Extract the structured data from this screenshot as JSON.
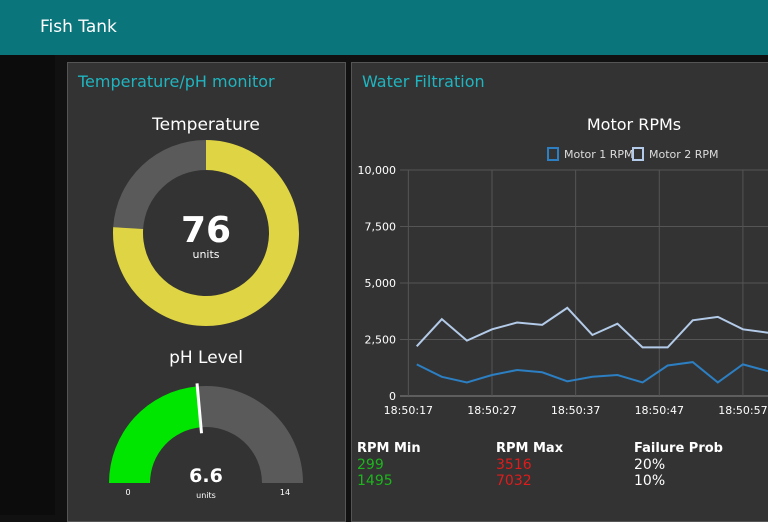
{
  "header": {
    "title": "Fish Tank"
  },
  "groups": [
    {
      "title": "Temperature/pH monitor"
    },
    {
      "title": "Water Filtration"
    }
  ],
  "temperature_gauge": {
    "type": "donut",
    "title": "Temperature",
    "value": 76,
    "units": "units",
    "range": [
      0,
      100
    ],
    "color": "#dfd444",
    "track_color": "#5a5a5a"
  },
  "ph_gauge": {
    "type": "gauge",
    "title": "pH Level",
    "value": 6.6,
    "units": "units",
    "min": 0,
    "max": 14,
    "color": "#00e600",
    "track_color": "#5a5a5a"
  },
  "chart_data": {
    "type": "line",
    "title": "Motor RPMs",
    "x": [
      "18:50:18",
      "18:50:21",
      "18:50:24",
      "18:50:27",
      "18:50:30",
      "18:50:33",
      "18:50:36",
      "18:50:39",
      "18:50:42",
      "18:50:45",
      "18:50:48",
      "18:50:51",
      "18:50:54",
      "18:50:57",
      "18:51:00"
    ],
    "series": [
      {
        "name": "Motor 1 RPM",
        "color": "#2c7fc2",
        "values": [
          1400,
          850,
          600,
          930,
          1150,
          1050,
          650,
          850,
          930,
          600,
          1350,
          1500,
          600,
          1400,
          1100
        ]
      },
      {
        "name": "Motor 2 RPM",
        "color": "#b3cbe8",
        "values": [
          2200,
          3400,
          2450,
          2950,
          3250,
          3150,
          3900,
          2700,
          3200,
          2150,
          2150,
          3350,
          3500,
          2950,
          2800
        ]
      }
    ],
    "xlim": [
      "18:50:16",
      "18:51:00"
    ],
    "xticks": [
      "18:50:17",
      "18:50:27",
      "18:50:37",
      "18:50:47",
      "18:50:57"
    ],
    "ylim": [
      0,
      10000
    ],
    "yticks": [
      0,
      {
        "value": 2500,
        "label": "2,500"
      },
      {
        "value": 5000,
        "label": "5,000"
      },
      {
        "value": 7500,
        "label": "7,500"
      },
      {
        "value": 10000,
        "label": "10,000"
      }
    ],
    "grid": true,
    "legend": "top"
  },
  "table": {
    "headers": [
      "RPM Min",
      "RPM Max",
      "Failure Prob"
    ],
    "rows": [
      [
        "299",
        "3516",
        "20%"
      ],
      [
        "1495",
        "7032",
        "10%"
      ]
    ],
    "colors": [
      "#1db51d",
      "#e01b1b",
      "#ffffff"
    ]
  }
}
